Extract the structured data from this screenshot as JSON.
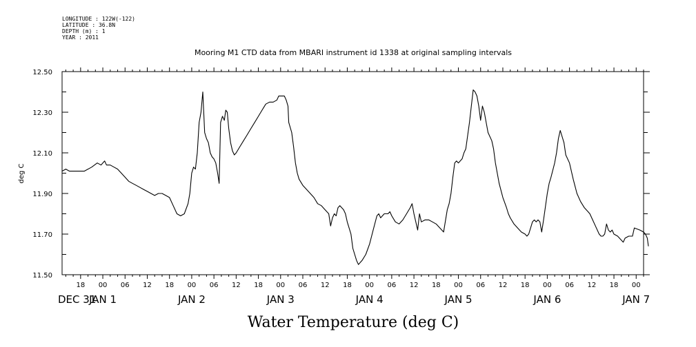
{
  "meta": {
    "longitude": "LONGITUDE : 122W(-122)",
    "latitude": "LATITUDE : 36.8N",
    "depth": "DEPTH (m) : 1",
    "year": "YEAR : 2011"
  },
  "chart_data": {
    "type": "line",
    "title": "Mooring M1 CTD data from MBARI instrument id 1338 at original sampling intervals",
    "xlabel": "Water Temperature (deg C)",
    "ylabel": "deg C",
    "ylim": [
      11.5,
      12.5
    ],
    "yticks": [
      "11.50",
      "11.70",
      "11.90",
      "12.10",
      "12.30",
      "12.50"
    ],
    "xlim_hours": [
      13,
      170
    ],
    "hour_tick_labels": [
      "18",
      "00",
      "06",
      "12",
      "18",
      "00",
      "06",
      "12",
      "18",
      "00",
      "06",
      "12",
      "18",
      "00",
      "06",
      "12",
      "18",
      "00",
      "06",
      "12",
      "18",
      "00",
      "06",
      "12",
      "18",
      "00"
    ],
    "day_labels": [
      "DEC 31",
      "JAN  1",
      "JAN  2",
      "JAN  3",
      "JAN  4",
      "JAN  5",
      "JAN  6",
      "JAN  7"
    ],
    "grid": false,
    "series": [
      {
        "points": [
          [
            13,
            12.01
          ],
          [
            14,
            12.02
          ],
          [
            15,
            12.01
          ],
          [
            17,
            12.01
          ],
          [
            19,
            12.01
          ],
          [
            21,
            12.03
          ],
          [
            22.5,
            12.05
          ],
          [
            23.5,
            12.04
          ],
          [
            24.5,
            12.06
          ],
          [
            25,
            12.04
          ],
          [
            26,
            12.04
          ],
          [
            27,
            12.03
          ],
          [
            28,
            12.02
          ],
          [
            29,
            12.0
          ],
          [
            30,
            11.98
          ],
          [
            31,
            11.96
          ],
          [
            32,
            11.95
          ],
          [
            33,
            11.94
          ],
          [
            34,
            11.93
          ],
          [
            35,
            11.92
          ],
          [
            36,
            11.91
          ],
          [
            37,
            11.9
          ],
          [
            38,
            11.89
          ],
          [
            39,
            11.9
          ],
          [
            40,
            11.9
          ],
          [
            41,
            11.89
          ],
          [
            42,
            11.88
          ],
          [
            43,
            11.84
          ],
          [
            44,
            11.8
          ],
          [
            45,
            11.79
          ],
          [
            46,
            11.8
          ],
          [
            47,
            11.85
          ],
          [
            47.5,
            11.9
          ],
          [
            48,
            12.0
          ],
          [
            48.5,
            12.03
          ],
          [
            49,
            12.02
          ],
          [
            49.5,
            12.1
          ],
          [
            50,
            12.25
          ],
          [
            50.5,
            12.3
          ],
          [
            51,
            12.4
          ],
          [
            51.5,
            12.2
          ],
          [
            52,
            12.17
          ],
          [
            52.5,
            12.15
          ],
          [
            53,
            12.1
          ],
          [
            53.5,
            12.08
          ],
          [
            54,
            12.07
          ],
          [
            54.5,
            12.05
          ],
          [
            55,
            12.0
          ],
          [
            55.4,
            11.95
          ],
          [
            55.8,
            12.25
          ],
          [
            56.3,
            12.28
          ],
          [
            56.8,
            12.26
          ],
          [
            57.2,
            12.31
          ],
          [
            57.6,
            12.3
          ],
          [
            58,
            12.22
          ],
          [
            58.5,
            12.15
          ],
          [
            59,
            12.11
          ],
          [
            59.5,
            12.09
          ],
          [
            60,
            12.1
          ],
          [
            61,
            12.13
          ],
          [
            62,
            12.16
          ],
          [
            63,
            12.19
          ],
          [
            64,
            12.22
          ],
          [
            65,
            12.25
          ],
          [
            66,
            12.28
          ],
          [
            67,
            12.31
          ],
          [
            68,
            12.34
          ],
          [
            69,
            12.35
          ],
          [
            70,
            12.35
          ],
          [
            71,
            12.36
          ],
          [
            71.5,
            12.38
          ],
          [
            72,
            12.38
          ],
          [
            73,
            12.38
          ],
          [
            73.5,
            12.36
          ],
          [
            74,
            12.33
          ],
          [
            74.2,
            12.25
          ],
          [
            75,
            12.2
          ],
          [
            75.5,
            12.13
          ],
          [
            76,
            12.05
          ],
          [
            76.5,
            12.0
          ],
          [
            77,
            11.97
          ],
          [
            78,
            11.94
          ],
          [
            79,
            11.92
          ],
          [
            80,
            11.9
          ],
          [
            81,
            11.88
          ],
          [
            82,
            11.85
          ],
          [
            83,
            11.84
          ],
          [
            84,
            11.82
          ],
          [
            85,
            11.8
          ],
          [
            85.5,
            11.74
          ],
          [
            86,
            11.78
          ],
          [
            86.5,
            11.8
          ],
          [
            87,
            11.79
          ],
          [
            87.5,
            11.83
          ],
          [
            88,
            11.84
          ],
          [
            89,
            11.82
          ],
          [
            89.5,
            11.8
          ],
          [
            90,
            11.76
          ],
          [
            91,
            11.7
          ],
          [
            91.5,
            11.63
          ],
          [
            92,
            11.6
          ],
          [
            92.5,
            11.57
          ],
          [
            93,
            11.55
          ],
          [
            93.5,
            11.56
          ],
          [
            94,
            11.57
          ],
          [
            95,
            11.6
          ],
          [
            96,
            11.65
          ],
          [
            97,
            11.72
          ],
          [
            98,
            11.79
          ],
          [
            98.5,
            11.8
          ],
          [
            99,
            11.78
          ],
          [
            100,
            11.8
          ],
          [
            101,
            11.8
          ],
          [
            101.5,
            11.81
          ],
          [
            102,
            11.79
          ],
          [
            103,
            11.76
          ],
          [
            104,
            11.75
          ],
          [
            105,
            11.77
          ],
          [
            106,
            11.8
          ],
          [
            107,
            11.83
          ],
          [
            107.5,
            11.85
          ],
          [
            108,
            11.8
          ],
          [
            109,
            11.72
          ],
          [
            109.5,
            11.8
          ],
          [
            110,
            11.76
          ],
          [
            111,
            11.77
          ],
          [
            112,
            11.77
          ],
          [
            113,
            11.76
          ],
          [
            114,
            11.75
          ],
          [
            115,
            11.73
          ],
          [
            116,
            11.71
          ],
          [
            117,
            11.82
          ],
          [
            117.5,
            11.85
          ],
          [
            118,
            11.9
          ],
          [
            118.5,
            11.98
          ],
          [
            119,
            12.05
          ],
          [
            119.5,
            12.06
          ],
          [
            120,
            12.05
          ],
          [
            121,
            12.07
          ],
          [
            121.5,
            12.1
          ],
          [
            122,
            12.12
          ],
          [
            123,
            12.25
          ],
          [
            123.5,
            12.33
          ],
          [
            124,
            12.41
          ],
          [
            124.5,
            12.4
          ],
          [
            125,
            12.38
          ],
          [
            125.5,
            12.33
          ],
          [
            126,
            12.26
          ],
          [
            126.5,
            12.33
          ],
          [
            127,
            12.3
          ],
          [
            127.5,
            12.25
          ],
          [
            128,
            12.2
          ],
          [
            129,
            12.16
          ],
          [
            129.5,
            12.12
          ],
          [
            130,
            12.05
          ],
          [
            131,
            11.95
          ],
          [
            132,
            11.88
          ],
          [
            133,
            11.83
          ],
          [
            133.5,
            11.8
          ],
          [
            134,
            11.78
          ],
          [
            135,
            11.75
          ],
          [
            136,
            11.73
          ],
          [
            137,
            11.71
          ],
          [
            138,
            11.7
          ],
          [
            138.5,
            11.69
          ],
          [
            139,
            11.7
          ],
          [
            140,
            11.76
          ],
          [
            140.5,
            11.77
          ],
          [
            141,
            11.76
          ],
          [
            141.5,
            11.77
          ],
          [
            142,
            11.76
          ],
          [
            142.5,
            11.71
          ],
          [
            143,
            11.77
          ],
          [
            144,
            11.9
          ],
          [
            144.5,
            11.95
          ],
          [
            145,
            11.98
          ],
          [
            146,
            12.05
          ],
          [
            146.5,
            12.1
          ],
          [
            147,
            12.17
          ],
          [
            147.5,
            12.21
          ],
          [
            148,
            12.18
          ],
          [
            148.5,
            12.15
          ],
          [
            149,
            12.09
          ],
          [
            150,
            12.05
          ],
          [
            151,
            11.97
          ],
          [
            152,
            11.9
          ],
          [
            153,
            11.86
          ],
          [
            154,
            11.83
          ],
          [
            155,
            11.81
          ],
          [
            155.5,
            11.8
          ],
          [
            156,
            11.78
          ],
          [
            157,
            11.74
          ],
          [
            158,
            11.7
          ],
          [
            158.5,
            11.69
          ],
          [
            159,
            11.69
          ],
          [
            159.5,
            11.7
          ],
          [
            160,
            11.75
          ],
          [
            160.5,
            11.72
          ],
          [
            161,
            11.71
          ],
          [
            161.5,
            11.72
          ],
          [
            162,
            11.7
          ],
          [
            163,
            11.69
          ],
          [
            164,
            11.67
          ],
          [
            164.5,
            11.66
          ],
          [
            165,
            11.68
          ],
          [
            166,
            11.69
          ],
          [
            167,
            11.69
          ],
          [
            167.5,
            11.73
          ],
          [
            169,
            11.72
          ],
          [
            170,
            11.71
          ],
          [
            170.5,
            11.7
          ],
          [
            171,
            11.68
          ],
          [
            171.3,
            11.64
          ]
        ]
      }
    ]
  }
}
